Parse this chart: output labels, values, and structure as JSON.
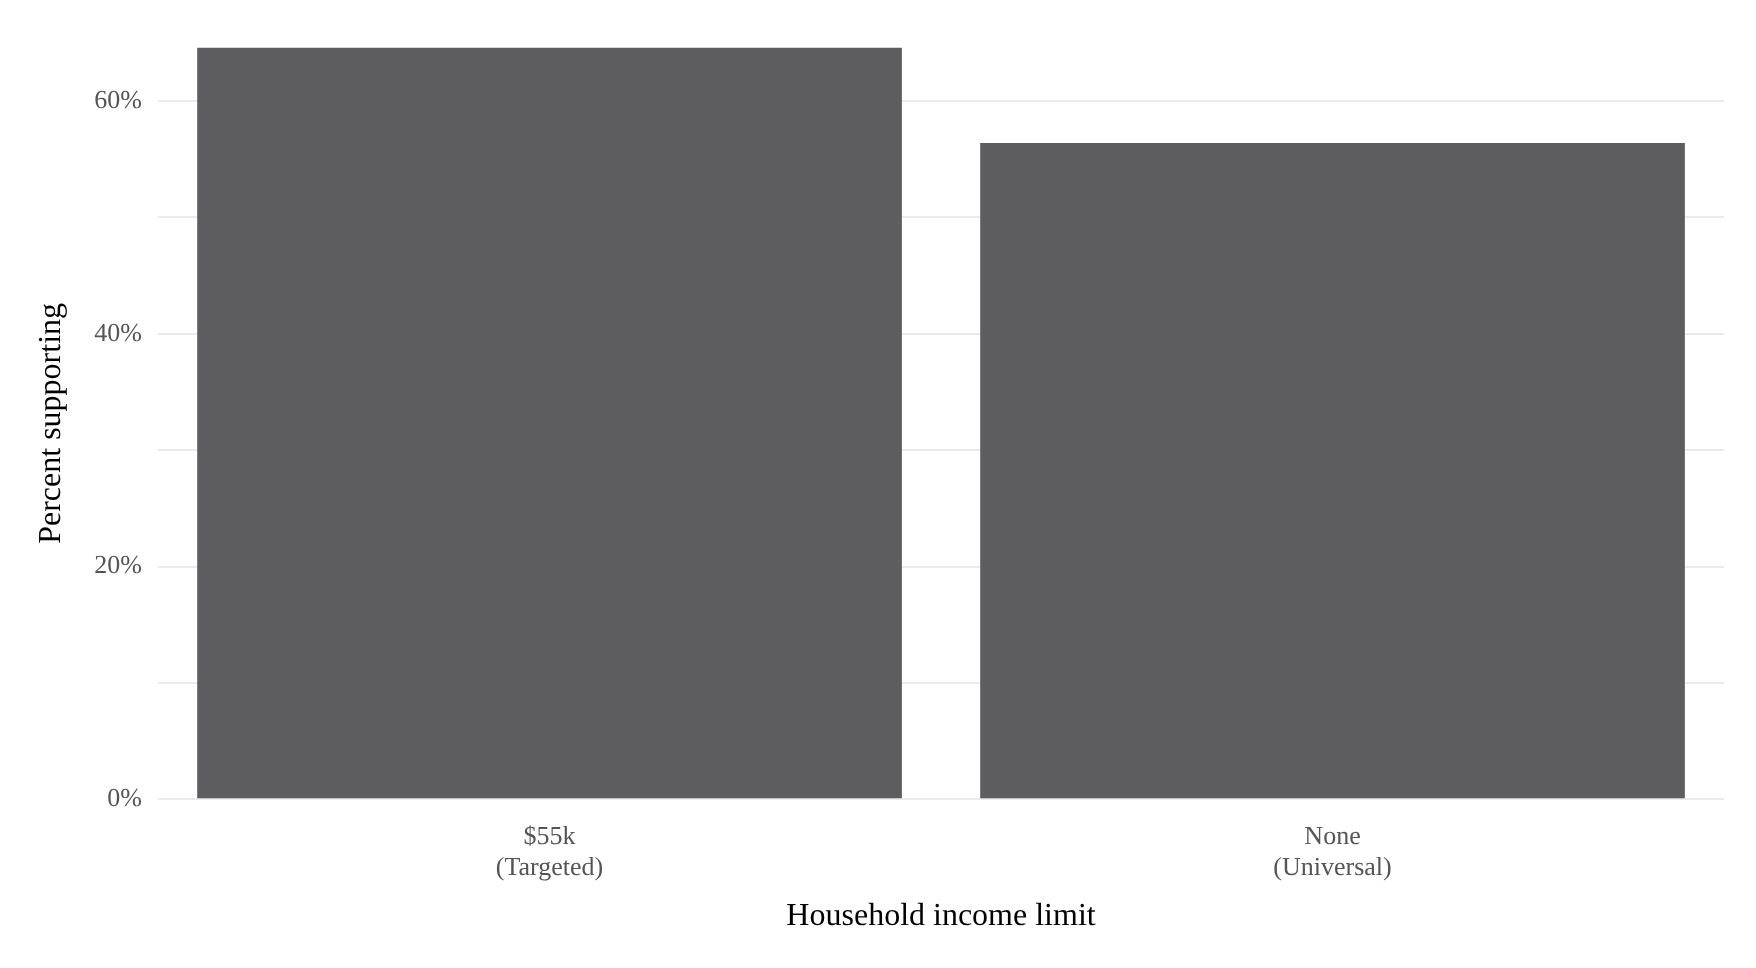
{
  "chart_data": {
    "type": "bar",
    "xlabel": "Household income limit",
    "ylabel": "Percent supporting",
    "categories": [
      "$55k\n(Targeted)",
      "None\n(Universal)"
    ],
    "values": [
      64.6,
      56.4
    ],
    "color": "#5d5d5f",
    "ylim": [
      0,
      64.6
    ],
    "yticks": [
      {
        "value": 0,
        "label": "0%"
      },
      {
        "value": 10,
        "label": null
      },
      {
        "value": 20,
        "label": "20%"
      },
      {
        "value": 30,
        "label": null
      },
      {
        "value": 40,
        "label": "40%"
      },
      {
        "value": 50,
        "label": null
      },
      {
        "value": 60,
        "label": "60%"
      }
    ],
    "grid": "y"
  }
}
